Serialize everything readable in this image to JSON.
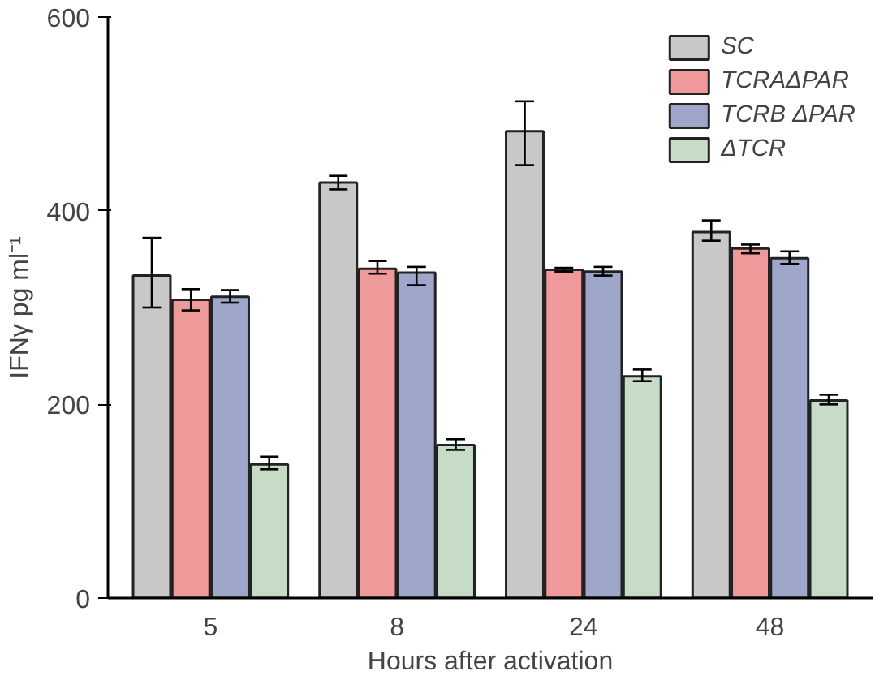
{
  "chart_data": {
    "type": "bar",
    "xlabel": "Hours after activation",
    "ylabel": "IFNγ pg ml⁻¹",
    "categories": [
      "5",
      "8",
      "24",
      "48"
    ],
    "series": [
      {
        "name": "SC",
        "color": "#c8c8c8",
        "values": [
          333,
          429,
          482,
          378
        ],
        "errors": [
          [
            300,
            372
          ],
          [
            422,
            436
          ],
          [
            447,
            513
          ],
          [
            369,
            390
          ]
        ]
      },
      {
        "name": "TCRAΔPAR",
        "color": "#f0999a",
        "values": [
          308,
          340,
          339,
          361
        ],
        "errors": [
          [
            297,
            319
          ],
          [
            335,
            348
          ],
          [
            337,
            341
          ],
          [
            356,
            365
          ]
        ]
      },
      {
        "name": "TCRB ΔPAR",
        "color": "#9ea6c9",
        "values": [
          311,
          336,
          337,
          351
        ],
        "errors": [
          [
            305,
            318
          ],
          [
            323,
            342
          ],
          [
            333,
            342
          ],
          [
            345,
            358
          ]
        ]
      },
      {
        "name": "ΔTCR",
        "color": "#c6dcc6",
        "values": [
          138,
          158,
          229,
          204
        ],
        "errors": [
          [
            133,
            146
          ],
          [
            153,
            164
          ],
          [
            224,
            236
          ],
          [
            200,
            210
          ]
        ]
      }
    ],
    "ylim": [
      0,
      600
    ],
    "yticks": [
      0,
      200,
      400,
      600
    ],
    "grid": false,
    "legend": "top right"
  }
}
